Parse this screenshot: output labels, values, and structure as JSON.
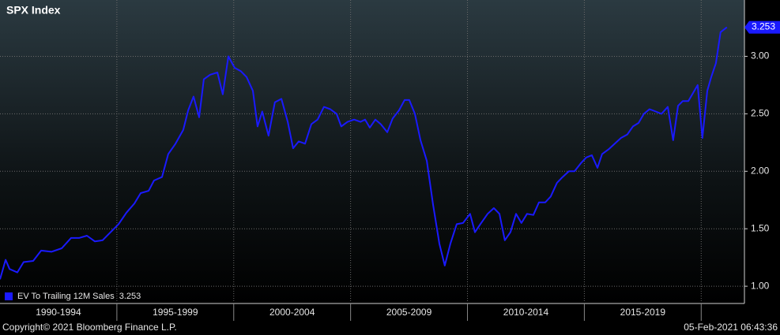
{
  "chart_data": {
    "type": "line",
    "title": "SPX Index",
    "footer_left": "Copyright© 2021 Bloomberg Finance L.P.",
    "footer_right": "05-Feb-2021 06:43:36",
    "xlim": [
      1990,
      2021.85
    ],
    "ylim": [
      0.85,
      3.49
    ],
    "xticks": [
      {
        "value": 1992.5,
        "label": "1990-1994"
      },
      {
        "value": 1997.5,
        "label": "1995-1999"
      },
      {
        "value": 2002.5,
        "label": "2000-2004"
      },
      {
        "value": 2007.5,
        "label": "2005-2009"
      },
      {
        "value": 2012.5,
        "label": "2010-2014"
      },
      {
        "value": 2017.5,
        "label": "2015-2019"
      }
    ],
    "yticks": [
      {
        "value": 1,
        "label": "1.00"
      },
      {
        "value": 1.5,
        "label": "1.50"
      },
      {
        "value": 2,
        "label": "2.00"
      },
      {
        "value": 2.5,
        "label": "2.50"
      },
      {
        "value": 3,
        "label": "3.00"
      }
    ],
    "grid": true,
    "legend": "lower left",
    "x": [
      1990.0,
      1990.24,
      1990.41,
      1990.74,
      1991.01,
      1991.42,
      1991.76,
      1992.2,
      1992.64,
      1993.04,
      1993.38,
      1993.72,
      1994.06,
      1994.39,
      1994.73,
      1995.07,
      1995.41,
      1995.75,
      1996.02,
      1996.36,
      1996.59,
      1996.93,
      1997.2,
      1997.51,
      1997.84,
      1998.05,
      1998.28,
      1998.52,
      1998.72,
      1998.99,
      1999.3,
      1999.53,
      1999.77,
      2000.04,
      2000.31,
      2000.55,
      2000.82,
      2001.02,
      2001.22,
      2001.49,
      2001.76,
      2002.04,
      2002.31,
      2002.54,
      2002.78,
      2003.05,
      2003.32,
      2003.59,
      2003.86,
      2004.13,
      2004.4,
      2004.6,
      2004.87,
      2005.15,
      2005.42,
      2005.62,
      2005.82,
      2006.06,
      2006.29,
      2006.57,
      2006.8,
      2007.07,
      2007.31,
      2007.51,
      2007.75,
      2007.99,
      2008.26,
      2008.53,
      2008.8,
      2009.03,
      2009.27,
      2009.54,
      2009.81,
      2010.11,
      2010.32,
      2010.55,
      2010.86,
      2011.13,
      2011.37,
      2011.6,
      2011.84,
      2012.08,
      2012.31,
      2012.55,
      2012.82,
      2013.06,
      2013.33,
      2013.56,
      2013.83,
      2014.07,
      2014.34,
      2014.58,
      2014.85,
      2015.08,
      2015.32,
      2015.56,
      2015.76,
      2016.03,
      2016.3,
      2016.57,
      2016.84,
      2017.08,
      2017.32,
      2017.55,
      2017.79,
      2018.06,
      2018.3,
      2018.57,
      2018.8,
      2019.01,
      2019.21,
      2019.45,
      2019.65,
      2019.85,
      2020.05,
      2020.26,
      2020.43,
      2020.63,
      2020.83,
      2021.1
    ],
    "series": [
      {
        "name": "EV To Trailing 12M Sales",
        "color": "#1a1aff",
        "values": [
          1.06,
          1.23,
          1.15,
          1.12,
          1.21,
          1.22,
          1.31,
          1.3,
          1.33,
          1.42,
          1.42,
          1.44,
          1.39,
          1.4,
          1.47,
          1.54,
          1.64,
          1.72,
          1.81,
          1.83,
          1.92,
          1.95,
          2.15,
          2.24,
          2.36,
          2.53,
          2.65,
          2.47,
          2.8,
          2.84,
          2.86,
          2.67,
          3.0,
          2.9,
          2.87,
          2.82,
          2.7,
          2.39,
          2.52,
          2.31,
          2.6,
          2.63,
          2.43,
          2.2,
          2.26,
          2.24,
          2.41,
          2.45,
          2.56,
          2.54,
          2.5,
          2.39,
          2.43,
          2.45,
          2.43,
          2.45,
          2.38,
          2.45,
          2.41,
          2.34,
          2.46,
          2.53,
          2.62,
          2.62,
          2.5,
          2.27,
          2.09,
          1.71,
          1.37,
          1.18,
          1.37,
          1.54,
          1.55,
          1.63,
          1.47,
          1.54,
          1.63,
          1.68,
          1.63,
          1.4,
          1.47,
          1.63,
          1.55,
          1.63,
          1.62,
          1.73,
          1.73,
          1.78,
          1.9,
          1.95,
          2.0,
          2.0,
          2.07,
          2.12,
          2.14,
          2.03,
          2.15,
          2.19,
          2.24,
          2.29,
          2.32,
          2.39,
          2.42,
          2.5,
          2.54,
          2.52,
          2.5,
          2.56,
          2.27,
          2.57,
          2.61,
          2.61,
          2.68,
          2.75,
          2.29,
          2.7,
          2.82,
          2.94,
          3.21,
          3.253
        ]
      }
    ]
  }
}
